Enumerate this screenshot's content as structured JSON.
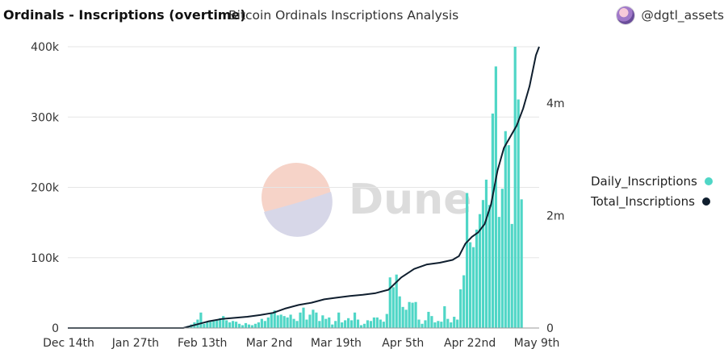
{
  "header": {
    "title": "Ordinals - Inscriptions (overtime)",
    "subtitle": "Bitcoin Ordinals Inscriptions Analysis",
    "author": "@dgtl_assets"
  },
  "watermark": {
    "text": "Dune"
  },
  "colors": {
    "bars": "#4fd6c6",
    "line": "#0f1e2e",
    "grid": "#e6e6e6",
    "axis_text": "#333333"
  },
  "chart_data": {
    "type": "bar",
    "title": "Ordinals - Inscriptions (overtime)",
    "x_tick_labels": [
      "Dec 14th",
      "Jan 27th",
      "Feb 13th",
      "Mar 2nd",
      "Mar 19th",
      "Apr 5th",
      "Apr 22nd",
      "May 9th"
    ],
    "legend": [
      "Daily_Inscriptions",
      "Total_Inscriptions"
    ],
    "y_left": {
      "ticks": [
        0,
        100000,
        200000,
        300000,
        400000
      ],
      "labels": [
        "0",
        "100k",
        "200k",
        "300k",
        "400k"
      ],
      "range": [
        0,
        400000
      ]
    },
    "y_right": {
      "ticks": [
        0,
        2000000,
        4000000
      ],
      "labels": [
        "0",
        "2m",
        "4m"
      ],
      "range": [
        0,
        5000000
      ]
    },
    "x_range_days": [
      0,
      147
    ],
    "series": [
      {
        "name": "Daily_Inscriptions",
        "type": "bar",
        "axis": "left",
        "start_day": 37,
        "values": [
          3000,
          5000,
          8000,
          12000,
          22000,
          6000,
          8000,
          9000,
          10000,
          12000,
          14000,
          17000,
          11000,
          8000,
          10000,
          9000,
          6000,
          4000,
          7000,
          5000,
          4000,
          6000,
          8000,
          13000,
          10000,
          15000,
          21000,
          25000,
          18000,
          19000,
          17000,
          15000,
          19000,
          13000,
          10000,
          22000,
          29000,
          12000,
          19000,
          26000,
          22000,
          10000,
          18000,
          13000,
          15000,
          5000,
          10000,
          22000,
          8000,
          11000,
          14000,
          11000,
          22000,
          12000,
          4000,
          6000,
          11000,
          10000,
          15000,
          15000,
          12000,
          9000,
          20000,
          72000,
          58000,
          76000,
          45000,
          30000,
          26000,
          37000,
          36000,
          37000,
          12000,
          6000,
          11000,
          23000,
          17000,
          8000,
          10000,
          9000,
          31000,
          13000,
          8000,
          16000,
          12000,
          55000,
          75000,
          192000,
          122000,
          115000,
          140000,
          162000,
          182000,
          211000,
          175000,
          305000,
          372000,
          158000,
          198000,
          280000,
          260000,
          148000,
          400000,
          325000,
          183000
        ]
      },
      {
        "name": "Total_Inscriptions",
        "type": "line",
        "axis": "right",
        "points": [
          [
            0,
            0
          ],
          [
            36,
            0
          ],
          [
            40,
            60000
          ],
          [
            44,
            120000
          ],
          [
            48,
            160000
          ],
          [
            52,
            180000
          ],
          [
            56,
            200000
          ],
          [
            60,
            230000
          ],
          [
            64,
            270000
          ],
          [
            68,
            350000
          ],
          [
            72,
            410000
          ],
          [
            76,
            450000
          ],
          [
            80,
            510000
          ],
          [
            84,
            540000
          ],
          [
            88,
            570000
          ],
          [
            92,
            590000
          ],
          [
            96,
            620000
          ],
          [
            100,
            680000
          ],
          [
            104,
            900000
          ],
          [
            108,
            1050000
          ],
          [
            112,
            1130000
          ],
          [
            116,
            1160000
          ],
          [
            120,
            1210000
          ],
          [
            122,
            1280000
          ],
          [
            124,
            1500000
          ],
          [
            126,
            1620000
          ],
          [
            128,
            1700000
          ],
          [
            130,
            1850000
          ],
          [
            132,
            2200000
          ],
          [
            134,
            2800000
          ],
          [
            136,
            3200000
          ],
          [
            138,
            3400000
          ],
          [
            140,
            3600000
          ],
          [
            142,
            3900000
          ],
          [
            144,
            4300000
          ],
          [
            146,
            4850000
          ],
          [
            147,
            5000000
          ]
        ]
      }
    ]
  }
}
